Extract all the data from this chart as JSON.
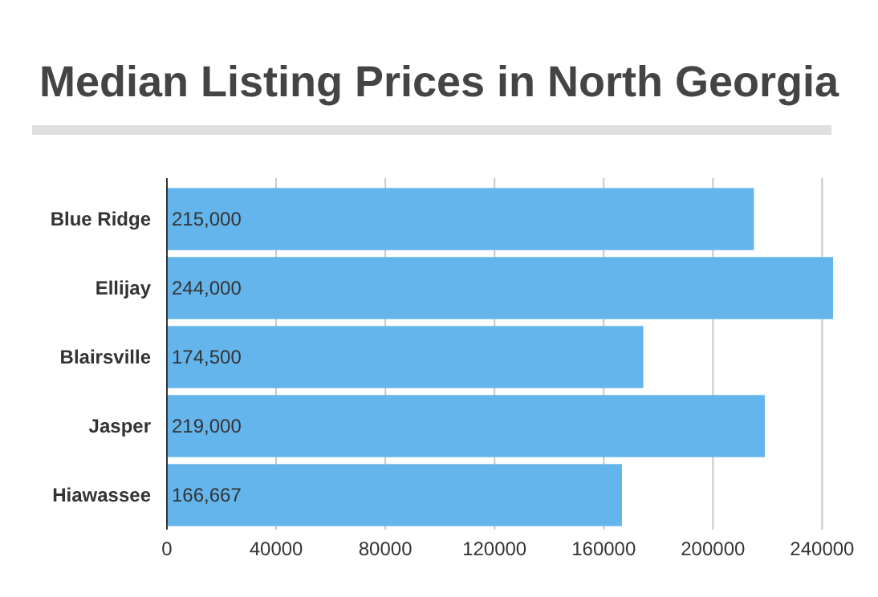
{
  "chart_data": {
    "type": "bar",
    "orientation": "horizontal",
    "title": "Median Listing Prices in North Georgia",
    "categories": [
      "Blue Ridge",
      "Ellijay",
      "Blairsville",
      "Jasper",
      "Hiawassee"
    ],
    "values": [
      215000,
      244000,
      174500,
      219000,
      166667
    ],
    "color": "#64b5eb",
    "xlim": [
      0,
      244000
    ],
    "xticks": [
      0,
      40000,
      80000,
      120000,
      160000,
      200000,
      240000
    ],
    "grid": "x",
    "value_labels": [
      "215,000",
      "244,000",
      "174,500",
      "219,000",
      "166,667"
    ]
  }
}
